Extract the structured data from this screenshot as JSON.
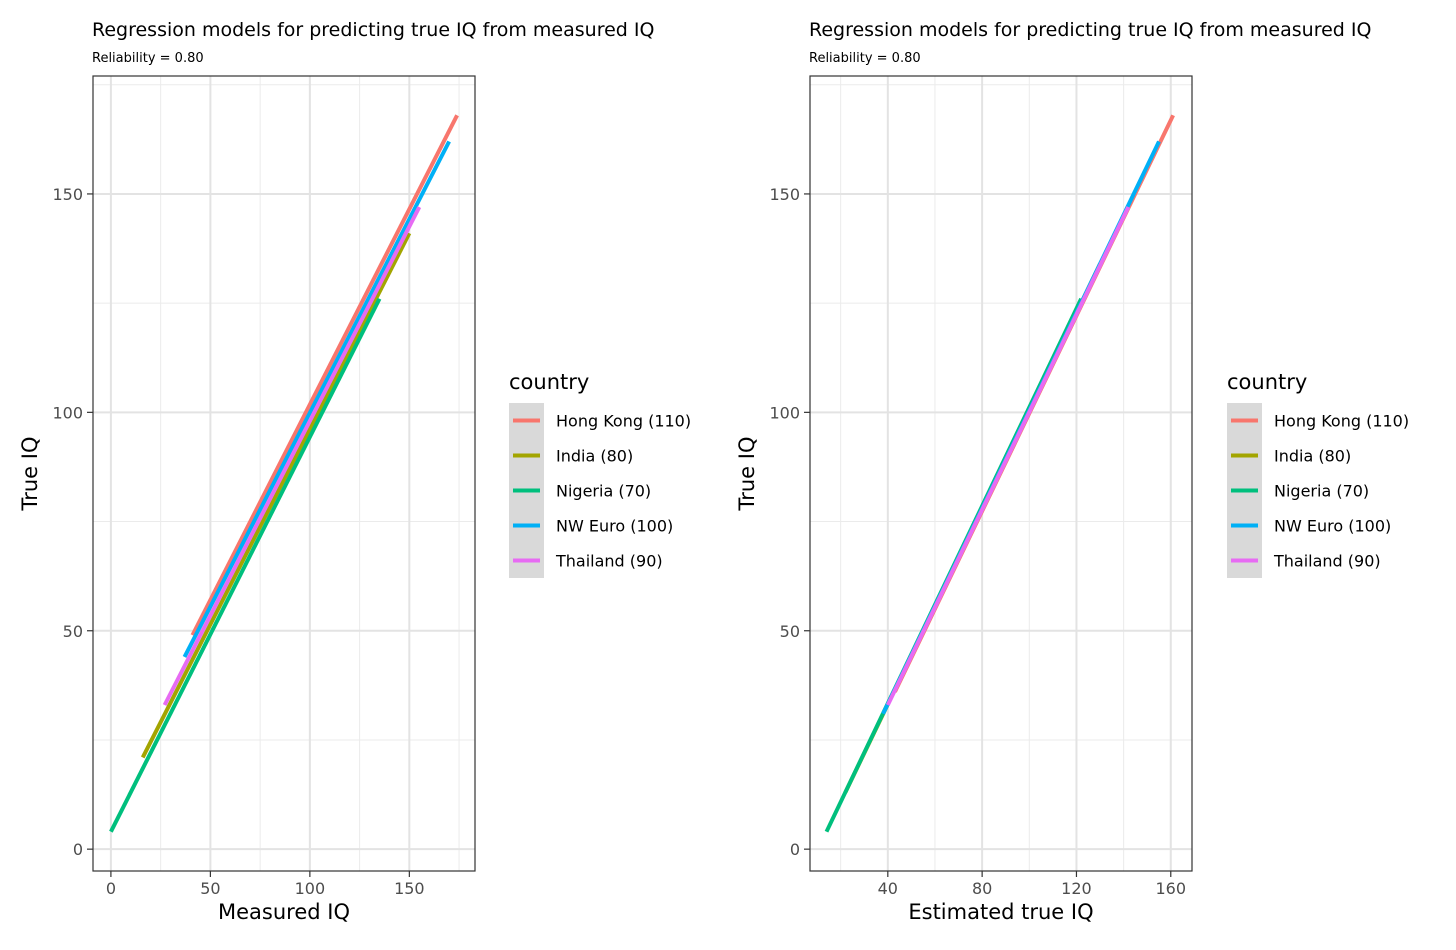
{
  "chart_data": [
    {
      "type": "line",
      "title": "Regression models for predicting true IQ from measured IQ",
      "subtitle": "Reliability = 0.80",
      "xlabel": "Measured IQ",
      "ylabel": "True IQ",
      "xlim": [
        -9,
        183
      ],
      "ylim": [
        -5,
        177
      ],
      "xticks": [
        0,
        50,
        100,
        150
      ],
      "yticks": [
        0,
        50,
        100,
        150
      ],
      "grid": true,
      "legend": {
        "title": "country",
        "position": "right",
        "entries": [
          "Hong Kong (110)",
          "India (80)",
          "Nigeria (70)",
          "NW Euro (100)",
          "Thailand (90)"
        ]
      },
      "series": [
        {
          "name": "Hong Kong (110)",
          "color": "#F8766D",
          "x": [
            41,
            174
          ],
          "y": [
            49,
            168
          ]
        },
        {
          "name": "India (80)",
          "color": "#A3A500",
          "x": [
            16,
            150
          ],
          "y": [
            21,
            141
          ]
        },
        {
          "name": "Nigeria (70)",
          "color": "#00BF7D",
          "x": [
            0,
            135
          ],
          "y": [
            4,
            126
          ]
        },
        {
          "name": "NW Euro (100)",
          "color": "#00B0F6",
          "x": [
            37,
            170
          ],
          "y": [
            44,
            162
          ]
        },
        {
          "name": "Thailand (90)",
          "color": "#E76BF3",
          "x": [
            27,
            155
          ],
          "y": [
            33,
            147
          ]
        }
      ]
    },
    {
      "type": "line",
      "title": "Regression models for predicting true IQ from measured IQ",
      "subtitle": "Reliability = 0.80",
      "xlabel": "Estimated true IQ",
      "ylabel": "True IQ",
      "xlim": [
        7,
        169
      ],
      "ylim": [
        -5,
        177
      ],
      "xticks": [
        40,
        80,
        120,
        160
      ],
      "yticks": [
        0,
        50,
        100,
        150
      ],
      "grid": true,
      "legend": {
        "title": "country",
        "position": "right",
        "entries": [
          "Hong Kong (110)",
          "India (80)",
          "Nigeria (70)",
          "NW Euro (100)",
          "Thailand (90)"
        ]
      },
      "series": [
        {
          "name": "Hong Kong (110)",
          "color": "#F8766D",
          "x": [
            43,
            161
          ],
          "y": [
            36,
            168
          ]
        },
        {
          "name": "India (80)",
          "color": "#A3A500",
          "x": [
            22,
            130
          ],
          "y": [
            13,
            134
          ]
        },
        {
          "name": "Nigeria (70)",
          "color": "#00BF7D",
          "x": [
            14,
            122
          ],
          "y": [
            4,
            126
          ]
        },
        {
          "name": "NW Euro (100)",
          "color": "#00B0F6",
          "x": [
            38,
            155
          ],
          "y": [
            31,
            162
          ]
        },
        {
          "name": "Thailand (90)",
          "color": "#E76BF3",
          "x": [
            40,
            142
          ],
          "y": [
            33,
            147
          ]
        }
      ]
    }
  ]
}
